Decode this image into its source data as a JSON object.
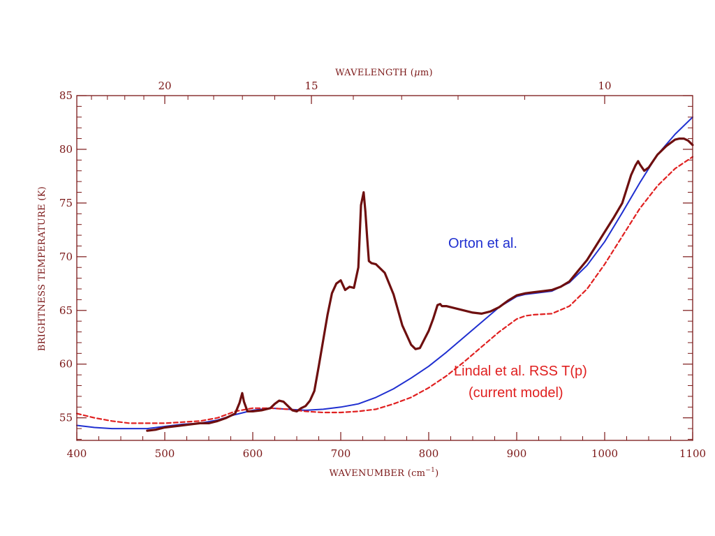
{
  "chart_data": {
    "type": "line",
    "xlabel": "WAVENUMBER (cm",
    "xlabel_sup": "−1",
    "xlabel_tail": ")",
    "top_axis_label_pre": "WAVELENGTH (",
    "top_axis_label_mu": "μ",
    "top_axis_label_post": "m)",
    "ylabel": "BRIGHTNESS TEMPERATURE (K)",
    "xlim": [
      400,
      1100
    ],
    "ylim": [
      52.9,
      85
    ],
    "x_ticks": [
      400,
      500,
      600,
      700,
      800,
      900,
      1000,
      1100
    ],
    "y_ticks": [
      55,
      60,
      65,
      70,
      75,
      80,
      85
    ],
    "top_ticks_um": [
      20,
      15,
      10
    ],
    "colors": {
      "axis": "#7a1616",
      "observed": "#6e0f0f",
      "orton": "#1f2fd0",
      "lindal": "#e02020"
    },
    "annotations": {
      "orton": "Orton et al.",
      "lindal_line1": "Lindal et al. RSS T(p)",
      "lindal_line2": "(current model)"
    },
    "series": [
      {
        "style": "solid-thick",
        "x": [
          480,
          490,
          500,
          510,
          520,
          530,
          540,
          550,
          560,
          570,
          580,
          585,
          588,
          590,
          594,
          600,
          610,
          620,
          625,
          630,
          635,
          640,
          645,
          650,
          655,
          660,
          665,
          670,
          675,
          680,
          685,
          690,
          695,
          700,
          705,
          710,
          715,
          720,
          723,
          726,
          728,
          730,
          732,
          735,
          740,
          750,
          760,
          770,
          780,
          785,
          790,
          795,
          800,
          805,
          810,
          813,
          815,
          820,
          830,
          840,
          850,
          860,
          870,
          880,
          890,
          900,
          910,
          920,
          930,
          940,
          950,
          960,
          970,
          980,
          990,
          1000,
          1010,
          1020,
          1030,
          1035,
          1038,
          1040,
          1045,
          1050,
          1060,
          1070,
          1080,
          1085,
          1090,
          1095,
          1100
        ],
        "y": [
          53.8,
          53.9,
          54.1,
          54.2,
          54.3,
          54.4,
          54.5,
          54.5,
          54.7,
          55.0,
          55.4,
          56.4,
          57.3,
          56.5,
          55.6,
          55.6,
          55.7,
          55.9,
          56.3,
          56.6,
          56.5,
          56.1,
          55.7,
          55.6,
          55.9,
          56.1,
          56.6,
          57.5,
          59.8,
          62.2,
          64.6,
          66.6,
          67.5,
          67.8,
          66.9,
          67.2,
          67.1,
          69.0,
          74.8,
          76.0,
          74.2,
          71.8,
          69.6,
          69.4,
          69.3,
          68.5,
          66.5,
          63.6,
          61.8,
          61.4,
          61.5,
          62.3,
          63.1,
          64.2,
          65.5,
          65.6,
          65.4,
          65.4,
          65.2,
          65.0,
          64.8,
          64.7,
          64.9,
          65.3,
          65.9,
          66.4,
          66.6,
          66.7,
          66.8,
          66.9,
          67.2,
          67.7,
          68.7,
          69.7,
          71.0,
          72.3,
          73.6,
          75.0,
          77.6,
          78.5,
          78.9,
          78.6,
          78.0,
          78.3,
          79.5,
          80.3,
          80.9,
          81.0,
          81.0,
          80.8,
          80.4
        ]
      },
      {
        "style": "solid-thin",
        "x": [
          400,
          420,
          440,
          460,
          480,
          500,
          520,
          540,
          560,
          580,
          600,
          620,
          640,
          660,
          680,
          700,
          720,
          740,
          760,
          780,
          800,
          820,
          840,
          860,
          880,
          900,
          910,
          920,
          940,
          960,
          980,
          1000,
          1020,
          1040,
          1060,
          1080,
          1100
        ],
        "y": [
          54.3,
          54.1,
          54.0,
          54.0,
          54.0,
          54.2,
          54.4,
          54.5,
          54.8,
          55.3,
          55.7,
          55.9,
          55.8,
          55.7,
          55.8,
          56.0,
          56.3,
          56.9,
          57.7,
          58.7,
          59.8,
          61.1,
          62.5,
          63.9,
          65.3,
          66.3,
          66.5,
          66.6,
          66.8,
          67.6,
          69.2,
          71.4,
          74.1,
          76.9,
          79.5,
          81.4,
          83.0
        ]
      },
      {
        "style": "dashed",
        "x": [
          400,
          420,
          440,
          460,
          480,
          500,
          520,
          540,
          560,
          580,
          600,
          620,
          640,
          660,
          680,
          700,
          720,
          740,
          760,
          780,
          800,
          820,
          840,
          860,
          880,
          900,
          910,
          920,
          940,
          960,
          980,
          1000,
          1020,
          1040,
          1060,
          1080,
          1100
        ],
        "y": [
          55.4,
          55.0,
          54.7,
          54.5,
          54.5,
          54.5,
          54.6,
          54.7,
          55.0,
          55.6,
          55.9,
          55.9,
          55.8,
          55.6,
          55.5,
          55.5,
          55.6,
          55.8,
          56.3,
          56.9,
          57.8,
          58.9,
          60.2,
          61.6,
          63.0,
          64.2,
          64.5,
          64.6,
          64.7,
          65.4,
          67.0,
          69.3,
          71.9,
          74.5,
          76.6,
          78.2,
          79.3
        ]
      }
    ]
  }
}
